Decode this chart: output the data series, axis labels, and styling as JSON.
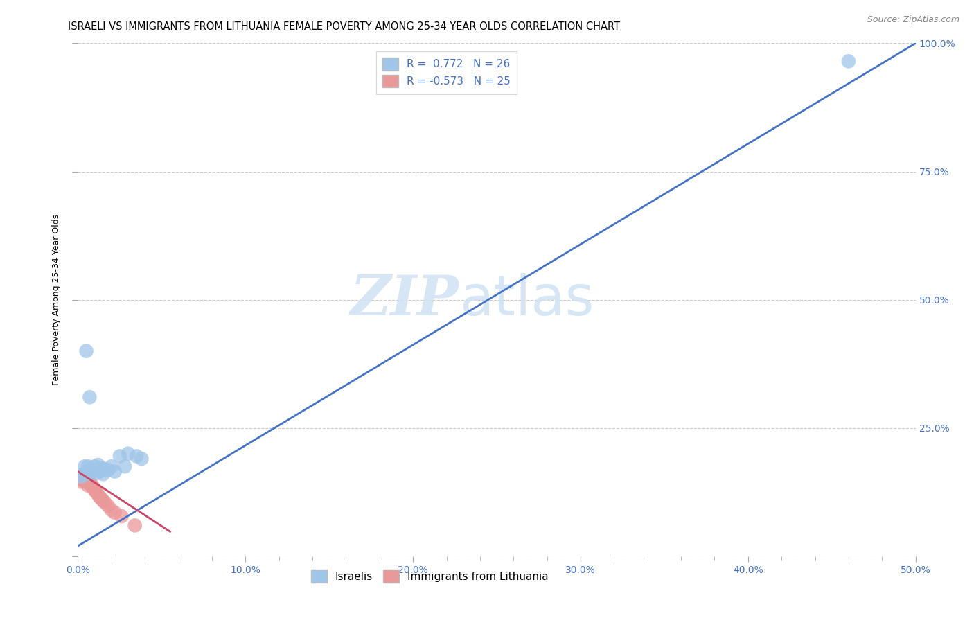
{
  "title": "ISRAELI VS IMMIGRANTS FROM LITHUANIA FEMALE POVERTY AMONG 25-34 YEAR OLDS CORRELATION CHART",
  "source": "Source: ZipAtlas.com",
  "ylabel": "Female Poverty Among 25-34 Year Olds",
  "xlabel": "",
  "watermark_zip": "ZIP",
  "watermark_atlas": "atlas",
  "xlim": [
    0.0,
    0.5
  ],
  "ylim": [
    0.0,
    1.0
  ],
  "xtick_labels": [
    "0.0%",
    "",
    "",
    "",
    "",
    "10.0%",
    "",
    "",
    "",
    "",
    "20.0%",
    "",
    "",
    "",
    "",
    "30.0%",
    "",
    "",
    "",
    "",
    "40.0%",
    "",
    "",
    "",
    "",
    "50.0%"
  ],
  "xtick_vals": [
    0.0,
    0.02,
    0.04,
    0.06,
    0.08,
    0.1,
    0.12,
    0.14,
    0.16,
    0.18,
    0.2,
    0.22,
    0.24,
    0.26,
    0.28,
    0.3,
    0.32,
    0.34,
    0.36,
    0.38,
    0.4,
    0.42,
    0.44,
    0.46,
    0.48,
    0.5
  ],
  "major_xtick_labels": [
    "0.0%",
    "10.0%",
    "20.0%",
    "30.0%",
    "40.0%",
    "50.0%"
  ],
  "major_xtick_vals": [
    0.0,
    0.1,
    0.2,
    0.3,
    0.4,
    0.5
  ],
  "right_ytick_labels": [
    "25.0%",
    "50.0%",
    "75.0%",
    "100.0%"
  ],
  "right_ytick_vals": [
    0.25,
    0.5,
    0.75,
    1.0
  ],
  "legend_r1_text": "R =  0.772   N = 26",
  "legend_r2_text": "R = -0.573   N = 25",
  "blue_color": "#9fc5e8",
  "pink_color": "#ea9999",
  "line_blue": "#4472c4",
  "line_pink": "#cc4466",
  "israelis_x": [
    0.002,
    0.003,
    0.004,
    0.005,
    0.006,
    0.007,
    0.008,
    0.009,
    0.01,
    0.011,
    0.012,
    0.013,
    0.014,
    0.015,
    0.016,
    0.018,
    0.02,
    0.022,
    0.025,
    0.028,
    0.03,
    0.035,
    0.038,
    0.005,
    0.007,
    0.46
  ],
  "israelis_y": [
    0.155,
    0.16,
    0.175,
    0.165,
    0.175,
    0.16,
    0.17,
    0.168,
    0.175,
    0.162,
    0.178,
    0.165,
    0.172,
    0.16,
    0.17,
    0.168,
    0.175,
    0.165,
    0.195,
    0.175,
    0.2,
    0.195,
    0.19,
    0.4,
    0.31,
    0.965
  ],
  "lithuania_x": [
    0.001,
    0.002,
    0.003,
    0.004,
    0.005,
    0.005,
    0.006,
    0.006,
    0.007,
    0.008,
    0.008,
    0.009,
    0.01,
    0.01,
    0.011,
    0.012,
    0.013,
    0.014,
    0.015,
    0.016,
    0.018,
    0.02,
    0.022,
    0.026,
    0.034
  ],
  "lithuania_y": [
    0.15,
    0.145,
    0.148,
    0.155,
    0.145,
    0.152,
    0.148,
    0.138,
    0.142,
    0.14,
    0.138,
    0.135,
    0.13,
    0.128,
    0.125,
    0.12,
    0.115,
    0.112,
    0.108,
    0.105,
    0.098,
    0.09,
    0.085,
    0.078,
    0.06
  ],
  "blue_line_x": [
    0.0,
    0.5
  ],
  "blue_line_y": [
    0.02,
    1.0
  ],
  "pink_line_x": [
    0.0,
    0.055
  ],
  "pink_line_y": [
    0.165,
    0.048
  ],
  "grid_color": "#cccccc",
  "background_color": "#ffffff",
  "title_fontsize": 10.5,
  "axis_label_fontsize": 9,
  "tick_fontsize": 10,
  "legend_fontsize": 11
}
